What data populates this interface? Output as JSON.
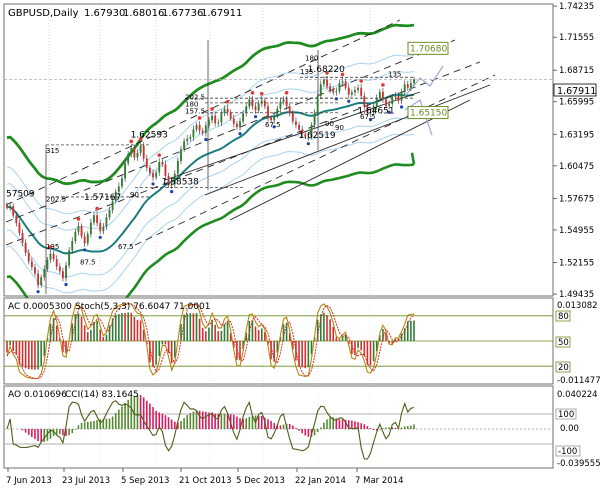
{
  "main": {
    "symbol_label": "GBPUSD,Daily",
    "ohlc": [
      "1.67930",
      "1.68016",
      "1.67736",
      "1.67911"
    ],
    "last_price": "1.67911",
    "price_axis": [
      "1.74235",
      "1.71555",
      "1.68715",
      "1.65995",
      "1.63195",
      "1.60475",
      "1.57675",
      "1.54955",
      "1.52155",
      "1.49435"
    ],
    "annotations": [
      {
        "text": "57509",
        "price": 1.575,
        "bar": 1
      },
      {
        "text": "1.57167",
        "price": 1.5717,
        "bar": 28
      },
      {
        "text": "1.62593",
        "price": 1.6259,
        "bar": 43
      },
      {
        "text": "1.58538",
        "price": 1.5854,
        "bar": 53
      },
      {
        "text": "1.68220",
        "price": 1.6822,
        "bar": 100
      },
      {
        "text": "1.64651",
        "price": 1.6465,
        "bar": 116
      },
      {
        "text": "1.62519",
        "price": 1.6252,
        "bar": 97
      },
      {
        "text": "1.70680",
        "price": 1.7068,
        "bar": 128,
        "boxed": true,
        "color": "#6b8e23"
      },
      {
        "text": "1.65150",
        "price": 1.6515,
        "bar": 124,
        "boxed": true,
        "color": "#6b8e23"
      }
    ],
    "fib_labels": [
      "315",
      "202.5",
      "135",
      "90",
      "67.5",
      "87.5",
      "202.5",
      "180",
      "157.5",
      "135",
      "90",
      "67.5",
      "180",
      "135",
      "90",
      "67.5"
    ]
  },
  "ac_panel": {
    "label": "AC 0.0005300",
    "stoch_label": "Stoch(5,3,3) 76.6047 71.0001",
    "axis": [
      "0.013082",
      "-0.011477"
    ],
    "levels": [
      "80",
      "50",
      "20"
    ]
  },
  "ao_panel": {
    "label": "AO 0.010696",
    "cci_label": "CCI(14) 83.1645",
    "axis": [
      "0.040224",
      "100",
      "0.00",
      "-100",
      "-0.039555"
    ]
  },
  "dates": [
    "7 Jun 2013",
    "23 Jul 2013",
    "5 Sep 2013",
    "21 Oct 2013",
    "5 Dec 2013",
    "22 Jan 2014",
    "7 Mar 2014"
  ],
  "colors": {
    "bull_candle": "#2e7d32",
    "bear_candle": "#d32f2f",
    "teal_ma": "#1b7d7d",
    "outer_band": "#1e8c1e",
    "inner_band": "#a9d3f0",
    "oscillator": "#b8860b",
    "oscillator_signal": "#d32f2f"
  },
  "chart_data": {
    "type": "candlestick",
    "title": "GBPUSD,Daily",
    "x": [
      "7 Jun 2013",
      "23 Jul 2013",
      "5 Sep 2013",
      "21 Oct 2013",
      "5 Dec 2013",
      "22 Jan 2014",
      "7 Mar 2014"
    ],
    "ylim": [
      1.4944,
      1.7424
    ],
    "closes": [
      1.569,
      1.57,
      1.562,
      1.5555,
      1.547,
      1.5385,
      1.53,
      1.5225,
      1.5175,
      1.512,
      1.502,
      1.5088,
      1.5158,
      1.524,
      1.529,
      1.5245,
      1.518,
      1.514,
      1.508,
      1.519,
      1.532,
      1.54,
      1.548,
      1.553,
      1.544,
      1.538,
      1.546,
      1.556,
      1.5622,
      1.5555,
      1.5485,
      1.5525,
      1.5605,
      1.5668,
      1.5745,
      1.5825,
      1.587,
      1.594,
      1.607,
      1.615,
      1.62,
      1.612,
      1.616,
      1.6222,
      1.611,
      1.603,
      1.5985,
      1.5948,
      1.599,
      1.608,
      1.606,
      1.596,
      1.588,
      1.5889,
      1.598,
      1.609,
      1.619,
      1.626,
      1.628,
      1.6295,
      1.636,
      1.64,
      1.635,
      1.633,
      1.6395,
      1.644,
      1.648,
      1.6415,
      1.642,
      1.65,
      1.654,
      1.651,
      1.6455,
      1.641,
      1.638,
      1.643,
      1.65,
      1.656,
      1.662,
      1.656,
      1.6525,
      1.6585,
      1.661,
      1.656,
      1.646,
      1.644,
      1.648,
      1.654,
      1.66,
      1.662,
      1.656,
      1.65,
      1.643,
      1.64,
      1.636,
      1.632,
      1.63,
      1.6295,
      1.64,
      1.65,
      1.665,
      1.675,
      1.679,
      1.673,
      1.67,
      1.668,
      1.669,
      1.676,
      1.6775,
      1.672,
      1.666,
      1.668,
      1.67,
      1.672,
      1.665,
      1.656,
      1.65,
      1.651,
      1.656,
      1.663,
      1.6685,
      1.662,
      1.6565,
      1.658,
      1.664,
      1.665,
      1.6608,
      1.668,
      1.675,
      1.672,
      1.676,
      1.6791
    ],
    "fib_price_levels": [
      1.68,
      1.664,
      1.653,
      1.638,
      1.625,
      1.59,
      1.58,
      1.533,
      1.512,
      1.495
    ]
  }
}
